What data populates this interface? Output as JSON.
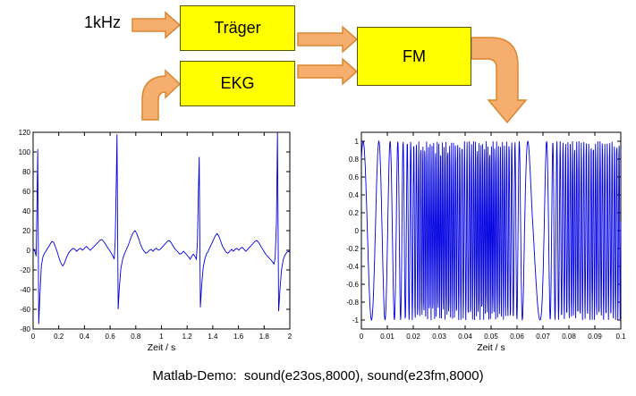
{
  "diagram": {
    "input_label": "1kHz",
    "boxes": [
      {
        "id": "traeger",
        "label": "Träger"
      },
      {
        "id": "ekg",
        "label": "EKG"
      },
      {
        "id": "fm",
        "label": "FM"
      }
    ],
    "colors": {
      "box_fill": "#FFFF00",
      "box_border": "#555500",
      "arrow_fill": "#F5AE6E",
      "arrow_border": "#D9862F"
    }
  },
  "caption": "Matlab-Demo:  sound(e23os,8000), sound(e23fm,8000)",
  "chart_data": [
    {
      "id": "ekg",
      "type": "line",
      "title": "",
      "xlabel": "Zeit / s",
      "ylabel": "",
      "xlim": [
        0,
        2
      ],
      "ylim": [
        -80,
        120
      ],
      "grid": false,
      "color": "#0000E0",
      "xticks": [
        0,
        0.2,
        0.4,
        0.6,
        0.8,
        1,
        1.2,
        1.4,
        1.6,
        1.8,
        2
      ],
      "xtick_labels": [
        "0",
        "0.2",
        "0.4",
        "0.6",
        "0.8",
        "1",
        "1.2",
        "1.4",
        "1.6",
        "1.8",
        "2"
      ],
      "yticks": [
        -80,
        -60,
        -40,
        -20,
        0,
        20,
        40,
        60,
        80,
        100,
        120
      ],
      "ytick_labels": [
        "-80",
        "-60",
        "-40",
        "-20",
        "0",
        "20",
        "40",
        "60",
        "80",
        "100",
        "120"
      ],
      "points": [
        [
          0.0,
          -1
        ],
        [
          0.008,
          1
        ],
        [
          0.016,
          -2
        ],
        [
          0.024,
          -6
        ],
        [
          0.03,
          45
        ],
        [
          0.036,
          103
        ],
        [
          0.044,
          -75
        ],
        [
          0.054,
          -44
        ],
        [
          0.064,
          -16
        ],
        [
          0.076,
          -7
        ],
        [
          0.088,
          -3
        ],
        [
          0.1,
          -1
        ],
        [
          0.112,
          2
        ],
        [
          0.124,
          4
        ],
        [
          0.136,
          7
        ],
        [
          0.148,
          9
        ],
        [
          0.16,
          8
        ],
        [
          0.172,
          4
        ],
        [
          0.184,
          0
        ],
        [
          0.196,
          -5
        ],
        [
          0.208,
          -10
        ],
        [
          0.22,
          -14
        ],
        [
          0.232,
          -16
        ],
        [
          0.244,
          -13
        ],
        [
          0.256,
          -9
        ],
        [
          0.268,
          -5
        ],
        [
          0.28,
          -2
        ],
        [
          0.295,
          0
        ],
        [
          0.31,
          2
        ],
        [
          0.325,
          1
        ],
        [
          0.34,
          -1
        ],
        [
          0.355,
          1
        ],
        [
          0.37,
          2
        ],
        [
          0.385,
          0
        ],
        [
          0.4,
          2
        ],
        [
          0.415,
          4
        ],
        [
          0.43,
          2
        ],
        [
          0.445,
          0
        ],
        [
          0.46,
          2
        ],
        [
          0.475,
          4
        ],
        [
          0.49,
          6
        ],
        [
          0.505,
          8
        ],
        [
          0.52,
          10
        ],
        [
          0.535,
          11
        ],
        [
          0.55,
          9
        ],
        [
          0.565,
          6
        ],
        [
          0.58,
          3
        ],
        [
          0.595,
          0
        ],
        [
          0.61,
          -3
        ],
        [
          0.622,
          -6
        ],
        [
          0.632,
          -9
        ],
        [
          0.64,
          10
        ],
        [
          0.648,
          70
        ],
        [
          0.654,
          118
        ],
        [
          0.663,
          -60
        ],
        [
          0.672,
          -38
        ],
        [
          0.684,
          -18
        ],
        [
          0.698,
          -9
        ],
        [
          0.71,
          -4
        ],
        [
          0.724,
          0
        ],
        [
          0.738,
          4
        ],
        [
          0.752,
          9
        ],
        [
          0.766,
          14
        ],
        [
          0.78,
          18
        ],
        [
          0.794,
          20
        ],
        [
          0.808,
          17
        ],
        [
          0.822,
          12
        ],
        [
          0.836,
          6
        ],
        [
          0.85,
          2
        ],
        [
          0.864,
          -1
        ],
        [
          0.878,
          -3
        ],
        [
          0.892,
          -2
        ],
        [
          0.906,
          0
        ],
        [
          0.92,
          1
        ],
        [
          0.934,
          -1
        ],
        [
          0.948,
          1
        ],
        [
          0.962,
          2
        ],
        [
          0.976,
          0
        ],
        [
          0.99,
          1
        ],
        [
          1.004,
          3
        ],
        [
          1.018,
          5
        ],
        [
          1.032,
          7
        ],
        [
          1.046,
          9
        ],
        [
          1.06,
          10
        ],
        [
          1.074,
          8
        ],
        [
          1.088,
          5
        ],
        [
          1.102,
          2
        ],
        [
          1.116,
          0
        ],
        [
          1.13,
          -2
        ],
        [
          1.144,
          -4
        ],
        [
          1.158,
          -3
        ],
        [
          1.172,
          -1
        ],
        [
          1.186,
          -3
        ],
        [
          1.2,
          -5
        ],
        [
          1.212,
          -7
        ],
        [
          1.224,
          -9
        ],
        [
          1.236,
          -6
        ],
        [
          1.248,
          -4
        ],
        [
          1.26,
          -6
        ],
        [
          1.272,
          -9
        ],
        [
          1.28,
          8
        ],
        [
          1.288,
          60
        ],
        [
          1.294,
          95
        ],
        [
          1.303,
          -58
        ],
        [
          1.313,
          -36
        ],
        [
          1.325,
          -18
        ],
        [
          1.338,
          -9
        ],
        [
          1.35,
          -4
        ],
        [
          1.364,
          -1
        ],
        [
          1.378,
          3
        ],
        [
          1.392,
          7
        ],
        [
          1.406,
          11
        ],
        [
          1.42,
          15
        ],
        [
          1.434,
          17
        ],
        [
          1.448,
          14
        ],
        [
          1.462,
          9
        ],
        [
          1.476,
          4
        ],
        [
          1.49,
          1
        ],
        [
          1.504,
          -2
        ],
        [
          1.518,
          -3
        ],
        [
          1.532,
          -1
        ],
        [
          1.546,
          1
        ],
        [
          1.56,
          -1
        ],
        [
          1.574,
          1
        ],
        [
          1.588,
          2
        ],
        [
          1.602,
          0
        ],
        [
          1.616,
          2
        ],
        [
          1.63,
          3
        ],
        [
          1.644,
          1
        ],
        [
          1.658,
          -1
        ],
        [
          1.672,
          1
        ],
        [
          1.686,
          3
        ],
        [
          1.7,
          5
        ],
        [
          1.714,
          7
        ],
        [
          1.728,
          9
        ],
        [
          1.742,
          10
        ],
        [
          1.756,
          8
        ],
        [
          1.77,
          5
        ],
        [
          1.784,
          2
        ],
        [
          1.798,
          -1
        ],
        [
          1.812,
          -4
        ],
        [
          1.826,
          -6
        ],
        [
          1.84,
          -8
        ],
        [
          1.854,
          -10
        ],
        [
          1.866,
          -12
        ],
        [
          1.876,
          -14
        ],
        [
          1.886,
          -8
        ],
        [
          1.896,
          30
        ],
        [
          1.904,
          120
        ],
        [
          1.913,
          -62
        ],
        [
          1.923,
          -40
        ],
        [
          1.935,
          -20
        ],
        [
          1.948,
          -10
        ],
        [
          1.962,
          -5
        ],
        [
          1.976,
          -2
        ],
        [
          1.99,
          -1
        ],
        [
          2.0,
          -2
        ]
      ]
    },
    {
      "id": "fm",
      "type": "line",
      "title": "",
      "xlabel": "Zeit / s",
      "ylabel": "",
      "xlim": [
        0,
        0.1
      ],
      "ylim": [
        -1.1,
        1.1
      ],
      "grid": false,
      "color": "#0000E0",
      "xticks": [
        0,
        0.01,
        0.02,
        0.03,
        0.04,
        0.05,
        0.06,
        0.07,
        0.08,
        0.09,
        0.1
      ],
      "xtick_labels": [
        "0",
        "0.01",
        "0.02",
        "0.03",
        "0.04",
        "0.05",
        "0.06",
        "0.07",
        "0.08",
        "0.09",
        "0.1"
      ],
      "yticks": [
        -1,
        -0.8,
        -0.6,
        -0.4,
        -0.2,
        0,
        0.2,
        0.4,
        0.6,
        0.8,
        1
      ],
      "ytick_labels": [
        "-1",
        "-0.8",
        "-0.6",
        "-0.4",
        "-0.2",
        "0",
        "0.2",
        "0.4",
        "0.6",
        "0.8",
        "1"
      ],
      "signal_synthesis": {
        "type": "fm_sine",
        "amplitude": 1,
        "sample_rate_hz": 8000,
        "t_start": 0,
        "t_end": 0.1,
        "initial_phase_rad": 0.93,
        "instantaneous_freq_hz": [
          [
            0,
            150
          ],
          [
            0.004,
            160
          ],
          [
            0.008,
            210
          ],
          [
            0.012,
            300
          ],
          [
            0.016,
            550
          ],
          [
            0.02,
            900
          ],
          [
            0.024,
            1400
          ],
          [
            0.03,
            1520
          ],
          [
            0.036,
            1300
          ],
          [
            0.04,
            1000
          ],
          [
            0.044,
            1400
          ],
          [
            0.05,
            1550
          ],
          [
            0.056,
            1150
          ],
          [
            0.06,
            600
          ],
          [
            0.063,
            220
          ],
          [
            0.066,
            80
          ],
          [
            0.069,
            110
          ],
          [
            0.072,
            350
          ],
          [
            0.075,
            700
          ],
          [
            0.078,
            1000
          ],
          [
            0.082,
            1250
          ],
          [
            0.086,
            1000
          ],
          [
            0.09,
            1200
          ],
          [
            0.094,
            1050
          ],
          [
            0.1,
            1150
          ]
        ]
      }
    }
  ]
}
